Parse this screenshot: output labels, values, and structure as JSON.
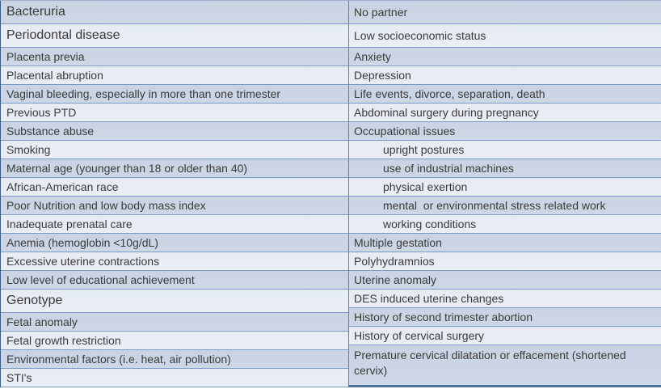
{
  "colors": {
    "background": "#ffffff",
    "dark_row": "#cdd7e6",
    "light_row": "#e9eef7",
    "row_border": "#7b9ac3",
    "divider": "#5d81b0",
    "outer_left": "#3c5c88",
    "outer_top": "#9db1cf",
    "bottom_thick": "#4e7198",
    "text": "#3a3a3a"
  },
  "table": {
    "description": "Two-column table of risk factors",
    "left_column": {
      "rows": [
        {
          "label": "Bacteruria",
          "shade": "dark",
          "tall": true,
          "large": true
        },
        {
          "label": "Periodontal disease",
          "shade": "light",
          "tall": true,
          "large": true
        },
        {
          "label": "Placenta previa",
          "shade": "dark"
        },
        {
          "label": "Placental abruption",
          "shade": "light"
        },
        {
          "label": "Vaginal bleeding, especially in more than one trimester",
          "shade": "dark"
        },
        {
          "label": "Previous PTD",
          "shade": "light"
        },
        {
          "label": "Substance abuse",
          "shade": "dark"
        },
        {
          "label": "Smoking",
          "shade": "light"
        },
        {
          "label": "Maternal age (younger than 18 or older than 40)",
          "shade": "dark"
        },
        {
          "label": "African-American race",
          "shade": "light"
        },
        {
          "label": "Poor Nutrition and low body mass index",
          "shade": "dark"
        },
        {
          "label": "Inadequate prenatal care",
          "shade": "light"
        },
        {
          "label": "Anemia (hemoglobin <10g/dL)",
          "shade": "dark"
        },
        {
          "label": "Excessive uterine contractions",
          "shade": "light"
        },
        {
          "label": "Low level of educational achievement",
          "shade": "dark"
        },
        {
          "label": "Genotype",
          "shade": "light",
          "tall": true,
          "large": true
        },
        {
          "label": "Fetal anomaly",
          "shade": "dark"
        },
        {
          "label": "Fetal growth restriction",
          "shade": "light"
        },
        {
          "label": "Environmental factors (i.e. heat, air pollution)",
          "shade": "dark"
        },
        {
          "label": "STI's",
          "shade": "light"
        }
      ]
    },
    "right_column": {
      "rows": [
        {
          "label": "No partner",
          "shade": "dark",
          "tall": true
        },
        {
          "label": "Low socioeconomic status",
          "shade": "light",
          "tall": true
        },
        {
          "label": "Anxiety",
          "shade": "dark"
        },
        {
          "label": "Depression",
          "shade": "light"
        },
        {
          "label": "Life events, divorce, separation, death",
          "shade": "dark"
        },
        {
          "label": "Abdominal surgery during pregnancy",
          "shade": "light"
        },
        {
          "label": "Occupational issues",
          "shade": "dark"
        },
        {
          "label": "upright postures",
          "shade": "light",
          "indent": true
        },
        {
          "label": "use of industrial machines",
          "shade": "dark",
          "indent": true
        },
        {
          "label": "physical exertion",
          "shade": "light",
          "indent": true
        },
        {
          "label": "mental  or environmental stress related work",
          "shade": "dark",
          "indent": true
        },
        {
          "label": "working conditions",
          "shade": "light",
          "indent": true
        },
        {
          "label": "Multiple gestation",
          "shade": "dark"
        },
        {
          "label": "Polyhydramnios",
          "shade": "light"
        },
        {
          "label": "Uterine anomaly",
          "shade": "dark"
        },
        {
          "label": "DES induced uterine changes",
          "shade": "light"
        },
        {
          "label": "History of second trimester abortion",
          "shade": "dark"
        },
        {
          "label": "History of cervical surgery",
          "shade": "light"
        },
        {
          "label": "Premature cervical dilatation or effacement (shortened cervix)",
          "shade": "dark",
          "merged": true
        }
      ]
    }
  }
}
